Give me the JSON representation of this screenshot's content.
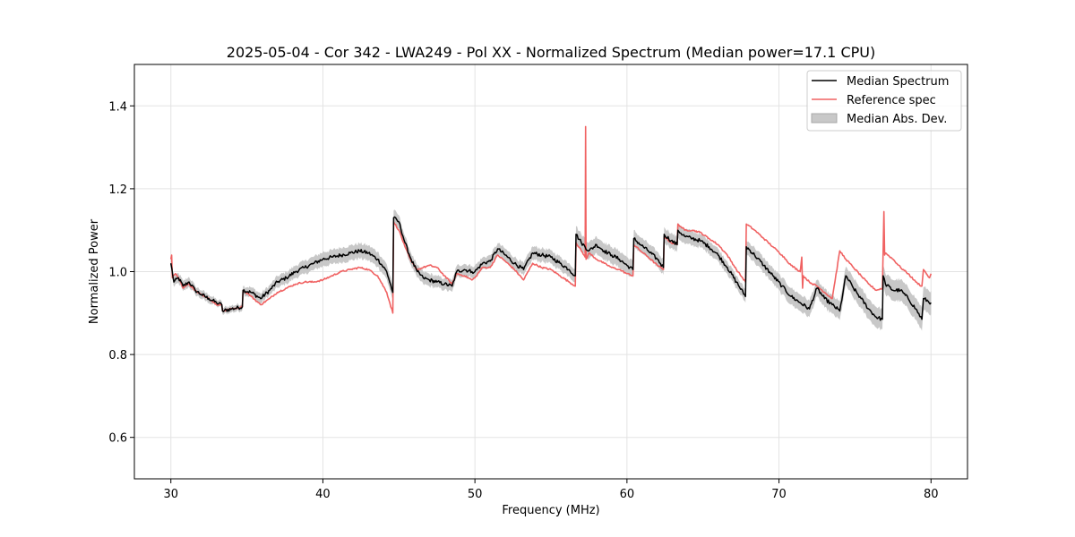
{
  "chart_data": {
    "type": "line",
    "title": "2025-05-04 - Cor 342 - LWA249 - Pol XX - Normalized Spectrum (Median power=17.1 CPU)",
    "xlabel": "Frequency (MHz)",
    "ylabel": "Normalized Power",
    "xlim": [
      27.6,
      82.4
    ],
    "ylim": [
      0.5,
      1.5
    ],
    "xticks": [
      30,
      40,
      50,
      60,
      70,
      80
    ],
    "yticks": [
      0.6,
      0.8,
      1.0,
      1.2,
      1.4
    ],
    "xtick_labels": [
      "30",
      "40",
      "50",
      "60",
      "70",
      "80"
    ],
    "ytick_labels": [
      "0.6",
      "0.8",
      "1.0",
      "1.2",
      "1.4"
    ],
    "grid": true,
    "legend": {
      "position": "top-right",
      "entries": [
        "Median Spectrum",
        "Reference spec",
        "Median Abs. Dev."
      ]
    },
    "colors": {
      "median": "#000000",
      "reference": "#f06262",
      "mad": "#c8c8c8"
    },
    "series": [
      {
        "name": "Median Spectrum",
        "x": [
          30.0,
          30.2,
          30.5,
          30.8,
          31.2,
          31.6,
          32.0,
          32.5,
          33.0,
          33.35,
          33.4,
          34.0,
          34.7,
          34.75,
          35.3,
          35.9,
          36.5,
          37.0,
          37.6,
          38.2,
          38.8,
          39.4,
          40.0,
          40.6,
          41.2,
          41.8,
          42.4,
          43.0,
          43.6,
          44.2,
          44.6,
          44.65,
          45.0,
          45.4,
          45.8,
          46.2,
          46.6,
          47.0,
          47.5,
          48.0,
          48.5,
          48.8,
          49.3,
          49.8,
          50.0,
          50.5,
          51.0,
          51.5,
          52.0,
          52.6,
          53.2,
          53.8,
          54.4,
          55.0,
          55.6,
          56.2,
          56.6,
          56.65,
          57.0,
          57.5,
          58.0,
          58.5,
          59.0,
          59.5,
          60.0,
          60.4,
          60.45,
          60.9,
          61.4,
          62.0,
          62.4,
          62.45,
          62.9,
          63.3,
          63.35,
          63.8,
          64.3,
          64.8,
          65.4,
          66.0,
          66.6,
          67.2,
          67.8,
          67.85,
          68.4,
          69.0,
          69.6,
          70.2,
          70.8,
          71.4,
          72.0,
          72.5,
          73.0,
          73.5,
          74.0,
          74.4,
          74.9,
          75.4,
          75.9,
          76.4,
          76.8,
          76.85,
          77.0,
          77.5,
          78.0,
          78.5,
          79.0,
          79.4,
          79.5,
          80.0
        ],
        "values": [
          1.02,
          0.975,
          0.985,
          0.965,
          0.975,
          0.955,
          0.945,
          0.935,
          0.925,
          0.92,
          0.905,
          0.91,
          0.915,
          0.955,
          0.95,
          0.935,
          0.955,
          0.975,
          0.985,
          1.0,
          1.01,
          1.02,
          1.03,
          1.035,
          1.04,
          1.045,
          1.05,
          1.045,
          1.03,
          1.0,
          0.95,
          1.13,
          1.12,
          1.07,
          1.03,
          1.0,
          0.985,
          0.98,
          0.975,
          0.97,
          0.965,
          1.0,
          1.005,
          1.0,
          1.0,
          1.02,
          1.025,
          1.055,
          1.04,
          1.02,
          1.005,
          1.045,
          1.04,
          1.035,
          1.02,
          1.005,
          0.99,
          1.09,
          1.07,
          1.05,
          1.065,
          1.05,
          1.04,
          1.03,
          1.015,
          1.005,
          1.08,
          1.065,
          1.05,
          1.03,
          1.01,
          1.09,
          1.075,
          1.065,
          1.1,
          1.085,
          1.08,
          1.075,
          1.06,
          1.04,
          1.01,
          0.975,
          0.94,
          1.06,
          1.04,
          1.015,
          0.99,
          0.965,
          0.94,
          0.925,
          0.91,
          0.96,
          0.935,
          0.92,
          0.905,
          0.99,
          0.96,
          0.935,
          0.91,
          0.89,
          0.885,
          0.99,
          0.97,
          0.955,
          0.955,
          0.935,
          0.91,
          0.885,
          0.935,
          0.925
        ],
        "mad": [
          0.01,
          0.012,
          0.012,
          0.012,
          0.012,
          0.01,
          0.01,
          0.01,
          0.008,
          0.008,
          0.008,
          0.008,
          0.008,
          0.01,
          0.012,
          0.012,
          0.012,
          0.014,
          0.014,
          0.015,
          0.016,
          0.016,
          0.017,
          0.017,
          0.018,
          0.018,
          0.018,
          0.018,
          0.018,
          0.018,
          0.018,
          0.018,
          0.016,
          0.015,
          0.015,
          0.015,
          0.015,
          0.015,
          0.014,
          0.014,
          0.014,
          0.014,
          0.014,
          0.014,
          0.014,
          0.014,
          0.014,
          0.014,
          0.015,
          0.015,
          0.015,
          0.016,
          0.016,
          0.016,
          0.016,
          0.016,
          0.016,
          0.02,
          0.02,
          0.02,
          0.02,
          0.02,
          0.02,
          0.02,
          0.02,
          0.02,
          0.02,
          0.018,
          0.018,
          0.018,
          0.018,
          0.018,
          0.018,
          0.018,
          0.018,
          0.018,
          0.017,
          0.016,
          0.016,
          0.015,
          0.015,
          0.015,
          0.015,
          0.016,
          0.018,
          0.018,
          0.018,
          0.02,
          0.02,
          0.02,
          0.02,
          0.02,
          0.022,
          0.022,
          0.022,
          0.022,
          0.024,
          0.024,
          0.024,
          0.025,
          0.025,
          0.025,
          0.025,
          0.025,
          0.026,
          0.026,
          0.026,
          0.028,
          0.028,
          0.028
        ]
      },
      {
        "name": "Reference spec",
        "x": [
          30.0,
          30.05,
          30.1,
          30.3,
          30.5,
          30.8,
          31.2,
          31.6,
          32.0,
          32.5,
          33.0,
          33.35,
          33.4,
          34.0,
          34.7,
          34.75,
          35.3,
          35.9,
          36.5,
          37.0,
          37.6,
          38.2,
          38.8,
          39.4,
          40.0,
          40.6,
          41.2,
          41.8,
          42.4,
          43.0,
          43.6,
          44.2,
          44.6,
          44.65,
          45.0,
          45.4,
          45.8,
          46.2,
          46.6,
          47.0,
          47.5,
          48.0,
          48.5,
          48.8,
          49.3,
          49.8,
          50.0,
          50.5,
          51.0,
          51.5,
          52.0,
          52.6,
          53.2,
          53.8,
          54.4,
          55.0,
          55.6,
          56.2,
          56.6,
          56.65,
          57.0,
          57.25,
          57.28,
          57.31,
          57.5,
          58.0,
          58.5,
          59.0,
          59.5,
          60.0,
          60.4,
          60.45,
          60.9,
          61.4,
          62.0,
          62.4,
          62.45,
          62.9,
          63.3,
          63.35,
          63.8,
          64.3,
          64.8,
          65.4,
          66.0,
          66.6,
          67.2,
          67.8,
          67.85,
          68.4,
          69.0,
          69.6,
          70.2,
          70.8,
          71.4,
          71.5,
          71.55,
          71.6,
          72.0,
          72.5,
          73.0,
          73.5,
          74.0,
          74.4,
          74.9,
          75.4,
          75.9,
          76.4,
          76.8,
          76.9,
          76.95,
          77.0,
          77.5,
          78.0,
          78.5,
          79.0,
          79.4,
          79.5,
          79.9,
          80.0
        ],
        "values": [
          1.03,
          1.04,
          0.985,
          0.995,
          0.985,
          0.96,
          0.97,
          0.955,
          0.945,
          0.935,
          0.92,
          0.92,
          0.905,
          0.91,
          0.915,
          0.955,
          0.94,
          0.92,
          0.935,
          0.95,
          0.96,
          0.97,
          0.975,
          0.975,
          0.98,
          0.99,
          1.0,
          1.005,
          1.01,
          1.005,
          0.99,
          0.95,
          0.9,
          1.12,
          1.1,
          1.06,
          1.025,
          1.005,
          1.01,
          1.015,
          1.01,
          0.99,
          0.97,
          0.995,
          0.99,
          0.98,
          0.985,
          1.01,
          1.01,
          1.04,
          1.025,
          1.005,
          0.98,
          1.02,
          1.01,
          1.005,
          0.99,
          0.975,
          0.965,
          1.07,
          1.05,
          1.035,
          1.35,
          1.03,
          1.045,
          1.03,
          1.02,
          1.01,
          1.005,
          0.995,
          0.99,
          1.065,
          1.05,
          1.035,
          1.015,
          1.005,
          1.085,
          1.07,
          1.065,
          1.115,
          1.1,
          1.1,
          1.095,
          1.08,
          1.065,
          1.04,
          1.005,
          0.975,
          1.115,
          1.1,
          1.08,
          1.06,
          1.04,
          1.015,
          1.0,
          1.035,
          0.96,
          0.99,
          0.975,
          0.965,
          0.95,
          0.935,
          1.05,
          1.03,
          1.01,
          0.99,
          0.97,
          0.955,
          0.96,
          1.145,
          1.04,
          1.045,
          1.03,
          1.01,
          0.995,
          0.975,
          0.965,
          1.005,
          0.985,
          0.995
        ]
      }
    ]
  }
}
